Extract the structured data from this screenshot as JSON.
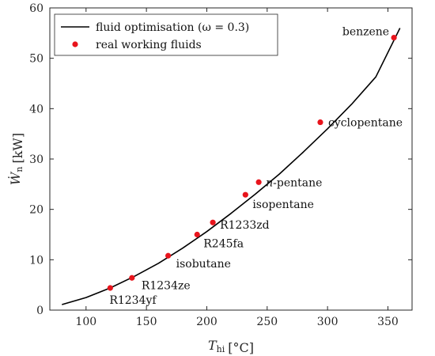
{
  "chart_data": {
    "type": "line",
    "xlabel_symbol": "T",
    "xlabel_sub": "hi",
    "xlabel_unit": "[°C]",
    "ylabel_symbol": "Ẇ",
    "ylabel_sub": "n",
    "ylabel_unit": "[kW]",
    "xlim": [
      70,
      370
    ],
    "ylim": [
      0,
      60
    ],
    "xticks": [
      100,
      150,
      200,
      250,
      300,
      350
    ],
    "yticks": [
      0,
      10,
      20,
      30,
      40,
      50,
      60
    ],
    "grid": false,
    "legend": {
      "placement": "top-left",
      "line_label": "fluid optimisation (ω = 0.3)",
      "points_label": "real working fluids"
    },
    "colors": {
      "line": "#000000",
      "points": "#e8141c"
    },
    "curve": {
      "x": [
        80,
        100,
        120,
        140,
        160,
        180,
        200,
        220,
        240,
        260,
        280,
        300,
        320,
        340,
        360
      ],
      "y": [
        1.1,
        2.5,
        4.4,
        6.7,
        9.3,
        12.3,
        15.6,
        19.2,
        23.0,
        27.0,
        31.4,
        36.0,
        40.9,
        46.3,
        56.0
      ]
    },
    "points": [
      {
        "name": "R1234yf",
        "x": 120,
        "y": 4.4
      },
      {
        "name": "R1234ze",
        "x": 138,
        "y": 6.4
      },
      {
        "name": "isobutane",
        "x": 168,
        "y": 10.8
      },
      {
        "name": "R245fa",
        "x": 192,
        "y": 15.0
      },
      {
        "name": "R1233zd",
        "x": 205,
        "y": 17.4
      },
      {
        "name": "isopentane",
        "x": 232,
        "y": 22.9
      },
      {
        "name": "n-pentane",
        "x": 243,
        "y": 25.4
      },
      {
        "name": "cyclopentane",
        "x": 294,
        "y": 37.3
      },
      {
        "name": "benzene",
        "x": 355,
        "y": 54.1
      }
    ]
  }
}
